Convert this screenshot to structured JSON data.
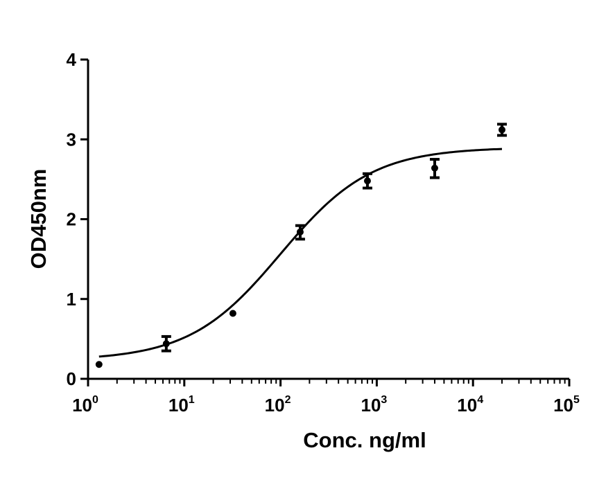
{
  "chart_data": {
    "type": "scatter",
    "title": "",
    "xlabel": "Conc. ng/ml",
    "ylabel": "OD450nm",
    "xscale": "log",
    "xlim": [
      1,
      100000
    ],
    "ylim": [
      0,
      4
    ],
    "grid": false,
    "legend": "none",
    "x_ticks": [
      {
        "base": "10",
        "exp": "0"
      },
      {
        "base": "10",
        "exp": "1"
      },
      {
        "base": "10",
        "exp": "2"
      },
      {
        "base": "10",
        "exp": "3"
      },
      {
        "base": "10",
        "exp": "4"
      },
      {
        "base": "10",
        "exp": "5"
      }
    ],
    "y_ticks": [
      "0",
      "1",
      "2",
      "3",
      "4"
    ],
    "points": [
      {
        "x": 1.3,
        "y": 0.18,
        "lo": 0.18,
        "hi": 0.18
      },
      {
        "x": 6.5,
        "y": 0.44,
        "lo": 0.35,
        "hi": 0.53
      },
      {
        "x": 32,
        "y": 0.82,
        "lo": 0.82,
        "hi": 0.82
      },
      {
        "x": 160,
        "y": 1.84,
        "lo": 1.75,
        "hi": 1.92
      },
      {
        "x": 800,
        "y": 2.48,
        "lo": 2.39,
        "hi": 2.57
      },
      {
        "x": 4000,
        "y": 2.64,
        "lo": 2.52,
        "hi": 2.75
      },
      {
        "x": 20000,
        "y": 3.12,
        "lo": 3.05,
        "hi": 3.19
      }
    ],
    "fit_curve": {
      "model": "4PL",
      "bottom": 0.23,
      "top": 2.9,
      "ec50": 100,
      "hill": 0.92,
      "x_range": [
        1.3,
        20000
      ]
    },
    "marker_color": "#000000",
    "line_color": "#000000"
  }
}
